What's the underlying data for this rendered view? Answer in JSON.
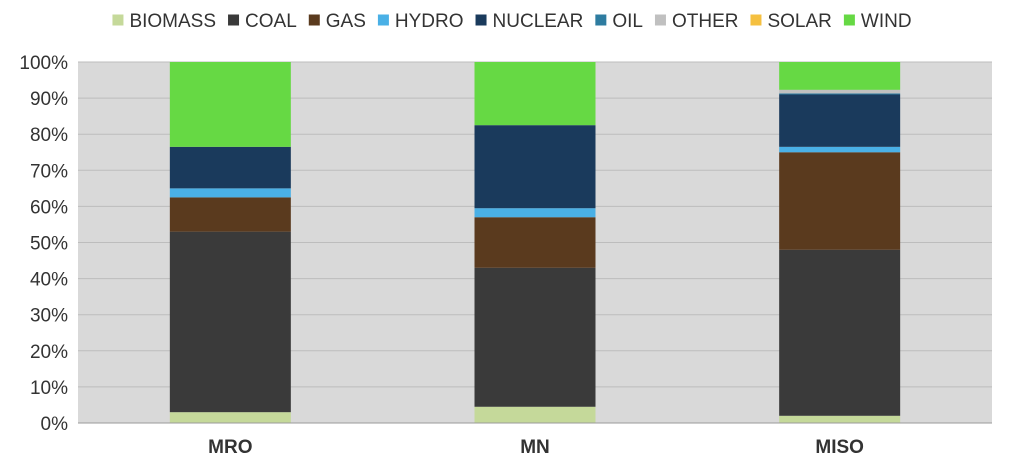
{
  "chart_data": {
    "type": "bar",
    "stacked": true,
    "percent": true,
    "categories": [
      "MRO",
      "MN",
      "MISO"
    ],
    "series": [
      {
        "name": "BIOMASS",
        "color": "#c5d99a",
        "values": [
          3,
          4.5,
          2
        ]
      },
      {
        "name": "COAL",
        "color": "#3a3a3a",
        "values": [
          50,
          38.5,
          46
        ]
      },
      {
        "name": "GAS",
        "color": "#5a3a1e",
        "values": [
          9.5,
          14,
          27
        ]
      },
      {
        "name": "HYDRO",
        "color": "#4ab0e6",
        "values": [
          2.5,
          2.5,
          1.5
        ]
      },
      {
        "name": "NUCLEAR",
        "color": "#1a3a5c",
        "values": [
          11.5,
          23,
          14.5
        ]
      },
      {
        "name": "OIL",
        "color": "#2e7ca0",
        "values": [
          0,
          0,
          0.3
        ]
      },
      {
        "name": "OTHER",
        "color": "#c0c0c0",
        "values": [
          0,
          0,
          1
        ]
      },
      {
        "name": "SOLAR",
        "color": "#f5c040",
        "values": [
          0,
          0,
          0
        ]
      },
      {
        "name": "WIND",
        "color": "#66d944",
        "values": [
          23.5,
          17.5,
          7.7
        ]
      }
    ],
    "y_ticks": [
      "0%",
      "10%",
      "20%",
      "30%",
      "40%",
      "50%",
      "60%",
      "70%",
      "80%",
      "90%",
      "100%"
    ],
    "ylim": [
      0,
      100
    ],
    "grid": true,
    "legend_position": "top",
    "plot_background": "#d9d9d9"
  }
}
